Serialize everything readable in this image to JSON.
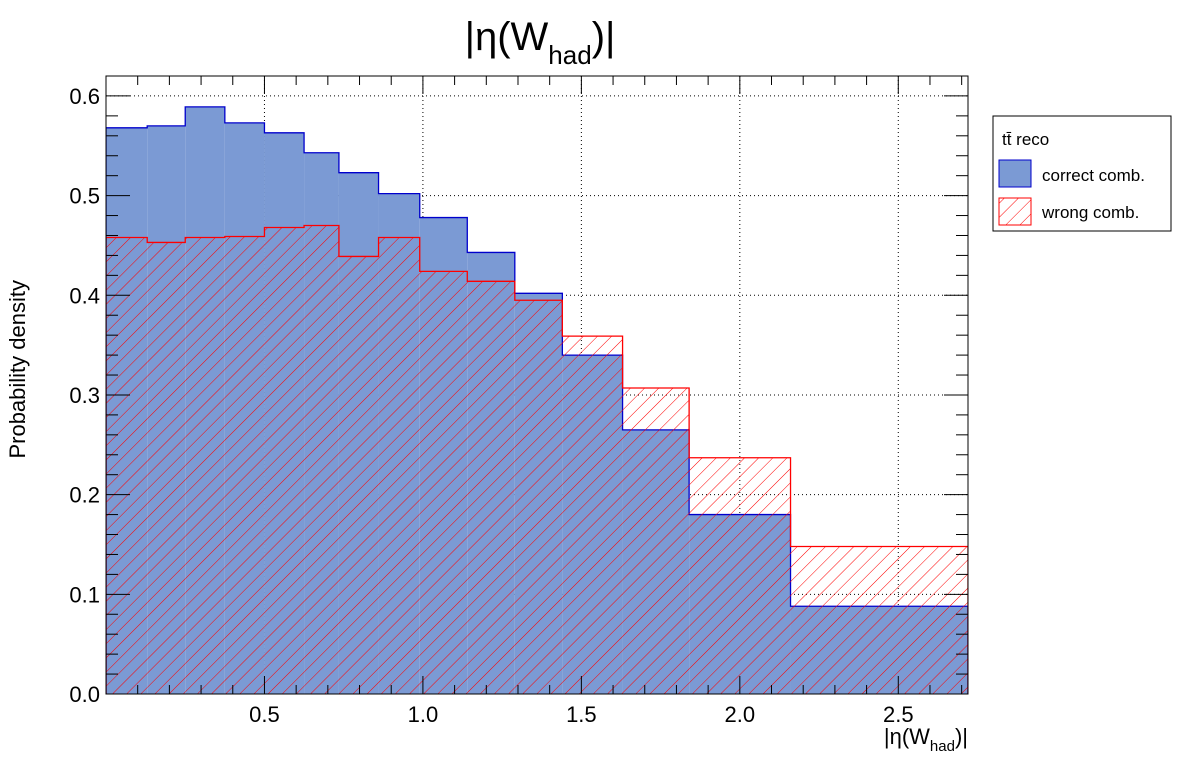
{
  "chart_data": {
    "type": "histogram",
    "title": {
      "main": "|η(W",
      "sub": "had",
      "tail": ")|"
    },
    "xlabel": {
      "main": "|η(W",
      "sub": "had",
      "tail": ")|"
    },
    "ylabel": "Probability density",
    "xlim": [
      0,
      2.72
    ],
    "ylim": [
      0,
      0.62
    ],
    "xticks": [
      0.5,
      1.0,
      1.5,
      2.0,
      2.5
    ],
    "xtick_labels": [
      "0.5",
      "1.0",
      "1.5",
      "2.0",
      "2.5"
    ],
    "yticks": [
      0.0,
      0.1,
      0.2,
      0.3,
      0.4,
      0.5,
      0.6
    ],
    "ytick_labels": [
      "0.0",
      "0.1",
      "0.2",
      "0.3",
      "0.4",
      "0.5",
      "0.6"
    ],
    "grid": true,
    "legend_position": "right",
    "legend_header": "tt̄ reco",
    "bin_edges": [
      0,
      0.13,
      0.25,
      0.375,
      0.5,
      0.625,
      0.735,
      0.86,
      0.99,
      1.14,
      1.29,
      1.44,
      1.63,
      1.84,
      2.16,
      2.72
    ],
    "series": [
      {
        "name": "correct comb.",
        "style": "solid-fill",
        "fill_color": "#7b9ad4",
        "line_color": "#0000cc",
        "values": [
          0.568,
          0.57,
          0.589,
          0.573,
          0.563,
          0.543,
          0.523,
          0.502,
          0.478,
          0.443,
          0.402,
          0.34,
          0.265,
          0.18,
          0.088
        ]
      },
      {
        "name": "wrong comb.",
        "style": "hatched",
        "fill_color": "#ff0000",
        "line_color": "#ff0000",
        "values": [
          0.458,
          0.453,
          0.458,
          0.459,
          0.468,
          0.47,
          0.439,
          0.458,
          0.424,
          0.414,
          0.395,
          0.359,
          0.307,
          0.237,
          0.148
        ]
      }
    ]
  }
}
